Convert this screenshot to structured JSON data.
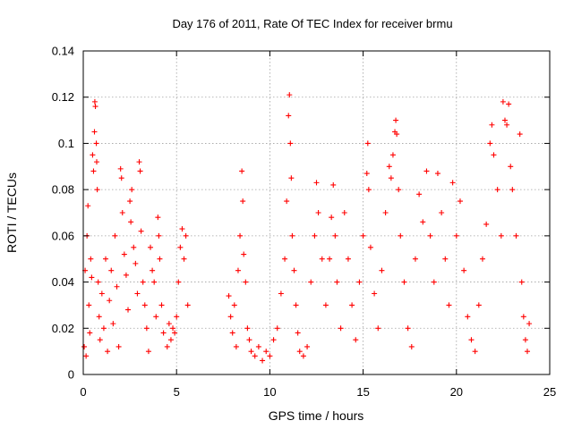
{
  "chart_data": {
    "type": "scatter",
    "title": "Day 176 of 2011, Rate Of TEC Index for receiver brmu",
    "xlabel": "GPS time / hours",
    "ylabel": "ROTI / TECUs",
    "xlim": [
      0,
      25
    ],
    "ylim": [
      0,
      0.14
    ],
    "xticks": [
      0,
      5,
      10,
      15,
      20,
      25
    ],
    "xtick_labels": [
      "0",
      "5",
      "10",
      "15",
      "20",
      "25"
    ],
    "yticks": [
      0,
      0.02,
      0.04,
      0.06,
      0.08,
      0.1,
      0.12,
      0.14
    ],
    "ytick_labels": [
      "0",
      "0.02",
      "0.04",
      "0.06",
      "0.08",
      "0.1",
      "0.12",
      "0.14"
    ],
    "grid": true,
    "marker": "+",
    "color": "#ff0000",
    "series": [
      {
        "name": "ROTI",
        "points": [
          [
            0.05,
            0.012
          ],
          [
            0.1,
            0.045
          ],
          [
            0.15,
            0.008
          ],
          [
            0.2,
            0.06
          ],
          [
            0.25,
            0.073
          ],
          [
            0.3,
            0.03
          ],
          [
            0.35,
            0.018
          ],
          [
            0.4,
            0.05
          ],
          [
            0.45,
            0.042
          ],
          [
            0.5,
            0.095
          ],
          [
            0.55,
            0.088
          ],
          [
            0.6,
            0.105
          ],
          [
            0.62,
            0.118
          ],
          [
            0.65,
            0.116
          ],
          [
            0.7,
            0.1
          ],
          [
            0.72,
            0.092
          ],
          [
            0.75,
            0.08
          ],
          [
            0.8,
            0.04
          ],
          [
            0.85,
            0.025
          ],
          [
            0.9,
            0.015
          ],
          [
            1.0,
            0.035
          ],
          [
            1.1,
            0.02
          ],
          [
            1.2,
            0.05
          ],
          [
            1.3,
            0.01
          ],
          [
            1.4,
            0.032
          ],
          [
            1.5,
            0.045
          ],
          [
            1.6,
            0.022
          ],
          [
            1.7,
            0.06
          ],
          [
            1.8,
            0.038
          ],
          [
            1.9,
            0.012
          ],
          [
            2.0,
            0.089
          ],
          [
            2.05,
            0.085
          ],
          [
            2.1,
            0.07
          ],
          [
            2.2,
            0.052
          ],
          [
            2.3,
            0.043
          ],
          [
            2.4,
            0.028
          ],
          [
            2.5,
            0.075
          ],
          [
            2.55,
            0.066
          ],
          [
            2.6,
            0.08
          ],
          [
            2.7,
            0.055
          ],
          [
            2.8,
            0.048
          ],
          [
            2.9,
            0.035
          ],
          [
            3.0,
            0.092
          ],
          [
            3.05,
            0.088
          ],
          [
            3.1,
            0.062
          ],
          [
            3.2,
            0.04
          ],
          [
            3.3,
            0.03
          ],
          [
            3.4,
            0.02
          ],
          [
            3.5,
            0.01
          ],
          [
            3.6,
            0.055
          ],
          [
            3.7,
            0.045
          ],
          [
            3.8,
            0.04
          ],
          [
            3.9,
            0.025
          ],
          [
            4.0,
            0.068
          ],
          [
            4.05,
            0.06
          ],
          [
            4.1,
            0.05
          ],
          [
            4.2,
            0.03
          ],
          [
            4.3,
            0.018
          ],
          [
            4.5,
            0.012
          ],
          [
            4.6,
            0.022
          ],
          [
            4.7,
            0.015
          ],
          [
            4.8,
            0.02
          ],
          [
            4.9,
            0.018
          ],
          [
            5.0,
            0.025
          ],
          [
            5.1,
            0.04
          ],
          [
            5.2,
            0.055
          ],
          [
            5.3,
            0.063
          ],
          [
            5.4,
            0.05
          ],
          [
            5.5,
            0.06
          ],
          [
            5.6,
            0.03
          ],
          [
            7.8,
            0.034
          ],
          [
            7.9,
            0.025
          ],
          [
            8.0,
            0.018
          ],
          [
            8.1,
            0.03
          ],
          [
            8.2,
            0.012
          ],
          [
            8.3,
            0.045
          ],
          [
            8.4,
            0.06
          ],
          [
            8.5,
            0.088
          ],
          [
            8.55,
            0.075
          ],
          [
            8.6,
            0.052
          ],
          [
            8.7,
            0.04
          ],
          [
            8.8,
            0.02
          ],
          [
            8.9,
            0.015
          ],
          [
            9.0,
            0.01
          ],
          [
            9.2,
            0.008
          ],
          [
            9.4,
            0.012
          ],
          [
            9.6,
            0.006
          ],
          [
            9.8,
            0.01
          ],
          [
            10.0,
            0.008
          ],
          [
            10.2,
            0.015
          ],
          [
            10.4,
            0.02
          ],
          [
            10.6,
            0.035
          ],
          [
            10.8,
            0.05
          ],
          [
            10.9,
            0.075
          ],
          [
            11.0,
            0.112
          ],
          [
            11.05,
            0.121
          ],
          [
            11.1,
            0.1
          ],
          [
            11.15,
            0.085
          ],
          [
            11.2,
            0.06
          ],
          [
            11.3,
            0.045
          ],
          [
            11.4,
            0.03
          ],
          [
            11.5,
            0.018
          ],
          [
            11.6,
            0.01
          ],
          [
            11.8,
            0.008
          ],
          [
            12.0,
            0.012
          ],
          [
            12.2,
            0.04
          ],
          [
            12.4,
            0.06
          ],
          [
            12.5,
            0.083
          ],
          [
            12.6,
            0.07
          ],
          [
            12.8,
            0.05
          ],
          [
            13.0,
            0.03
          ],
          [
            13.2,
            0.05
          ],
          [
            13.3,
            0.068
          ],
          [
            13.4,
            0.082
          ],
          [
            13.5,
            0.06
          ],
          [
            13.6,
            0.04
          ],
          [
            13.8,
            0.02
          ],
          [
            14.0,
            0.07
          ],
          [
            14.2,
            0.05
          ],
          [
            14.4,
            0.03
          ],
          [
            14.6,
            0.015
          ],
          [
            14.8,
            0.04
          ],
          [
            15.0,
            0.06
          ],
          [
            15.2,
            0.087
          ],
          [
            15.25,
            0.1
          ],
          [
            15.3,
            0.08
          ],
          [
            15.4,
            0.055
          ],
          [
            15.6,
            0.035
          ],
          [
            15.8,
            0.02
          ],
          [
            16.0,
            0.045
          ],
          [
            16.2,
            0.07
          ],
          [
            16.4,
            0.09
          ],
          [
            16.5,
            0.085
          ],
          [
            16.6,
            0.095
          ],
          [
            16.7,
            0.105
          ],
          [
            16.75,
            0.11
          ],
          [
            16.8,
            0.104
          ],
          [
            16.9,
            0.08
          ],
          [
            17.0,
            0.06
          ],
          [
            17.2,
            0.04
          ],
          [
            17.4,
            0.02
          ],
          [
            17.6,
            0.012
          ],
          [
            17.8,
            0.05
          ],
          [
            18.0,
            0.078
          ],
          [
            18.2,
            0.066
          ],
          [
            18.4,
            0.088
          ],
          [
            18.6,
            0.06
          ],
          [
            18.8,
            0.04
          ],
          [
            19.0,
            0.087
          ],
          [
            19.2,
            0.07
          ],
          [
            19.4,
            0.05
          ],
          [
            19.6,
            0.03
          ],
          [
            19.8,
            0.083
          ],
          [
            20.0,
            0.06
          ],
          [
            20.2,
            0.075
          ],
          [
            20.4,
            0.045
          ],
          [
            20.6,
            0.025
          ],
          [
            20.8,
            0.015
          ],
          [
            21.0,
            0.01
          ],
          [
            21.2,
            0.03
          ],
          [
            21.4,
            0.05
          ],
          [
            21.6,
            0.065
          ],
          [
            21.8,
            0.1
          ],
          [
            21.9,
            0.108
          ],
          [
            22.0,
            0.095
          ],
          [
            22.2,
            0.08
          ],
          [
            22.4,
            0.06
          ],
          [
            22.5,
            0.118
          ],
          [
            22.6,
            0.11
          ],
          [
            22.7,
            0.108
          ],
          [
            22.8,
            0.117
          ],
          [
            22.9,
            0.09
          ],
          [
            23.0,
            0.08
          ],
          [
            23.2,
            0.06
          ],
          [
            23.4,
            0.104
          ],
          [
            23.5,
            0.04
          ],
          [
            23.6,
            0.025
          ],
          [
            23.7,
            0.015
          ],
          [
            23.8,
            0.01
          ],
          [
            23.9,
            0.022
          ]
        ]
      }
    ]
  }
}
